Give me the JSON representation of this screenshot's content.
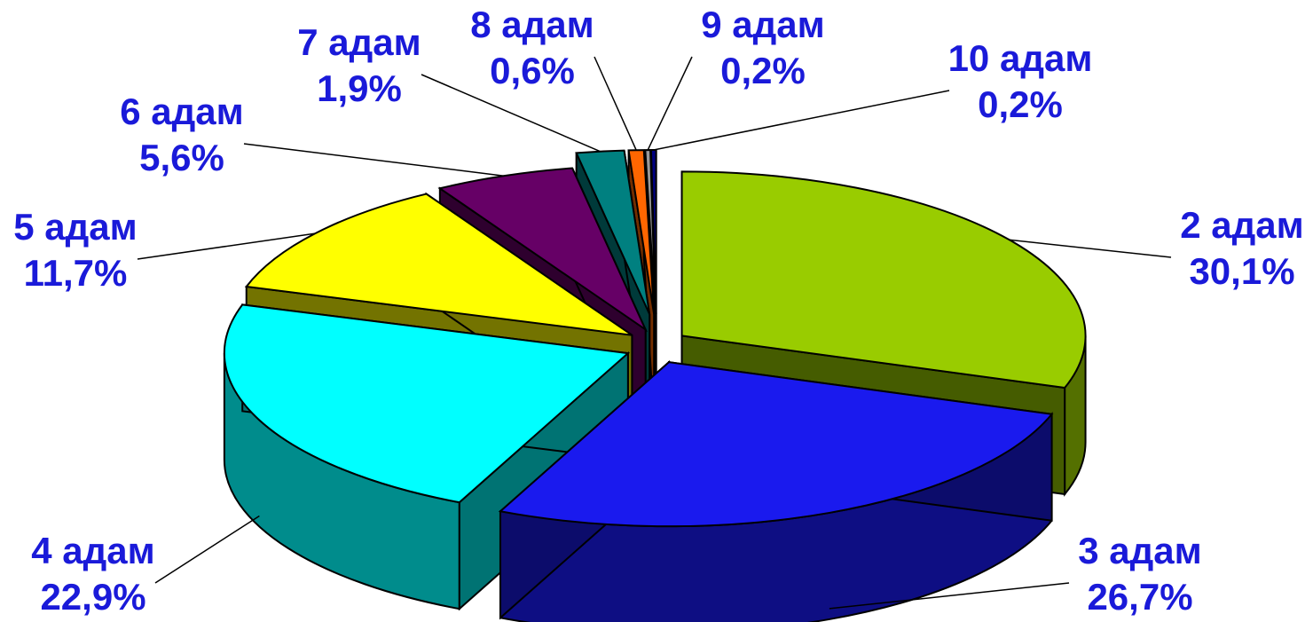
{
  "chart_data": {
    "type": "pie",
    "three_d": true,
    "exploded": true,
    "title": "",
    "legend": "none",
    "slices": [
      {
        "name": "2 адам",
        "value_label": "30,1%",
        "value": 30.1,
        "color": "#99cc00"
      },
      {
        "name": "3 адам",
        "value_label": "26,7%",
        "value": 26.7,
        "color": "#1a1aee"
      },
      {
        "name": "4 адам",
        "value_label": "22,9%",
        "value": 22.9,
        "color": "#00ffff"
      },
      {
        "name": "5 адам",
        "value_label": "11,7%",
        "value": 11.7,
        "color": "#ffff00"
      },
      {
        "name": "6 адам",
        "value_label": "5,6%",
        "value": 5.6,
        "color": "#660066"
      },
      {
        "name": "7 адам",
        "value_label": "1,9%",
        "value": 1.9,
        "color": "#008080"
      },
      {
        "name": "8 адам",
        "value_label": "0,6%",
        "value": 0.6,
        "color": "#ff6600"
      },
      {
        "name": "9 адам",
        "value_label": "0,2%",
        "value": 0.2,
        "color": "#999999"
      },
      {
        "name": "10 адам",
        "value_label": "0,2%",
        "value": 0.2,
        "color": "#000080"
      }
    ]
  }
}
